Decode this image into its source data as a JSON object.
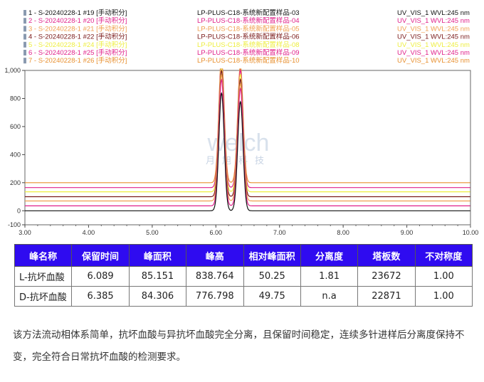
{
  "chart_data": {
    "type": "line",
    "legend": [
      {
        "run": "1 - S-20240228-1 #19 [手动积分]",
        "sample": "LP-PLUS-C18-系统新配置样品-03",
        "channel": "UV_VIS_1 WVL:245 nm",
        "color": "#111111"
      },
      {
        "run": "2 - S-20240228-1 #20 [手动积分]",
        "sample": "LP-PLUS-C18-系统新配置样品-04",
        "channel": "UV_VIS_1 WVL:245 nm",
        "color": "#e0208a"
      },
      {
        "run": "3 - S-20240228-1 #21 [手动积分]",
        "sample": "LP-PLUS-C18-系统新配置样品-05",
        "channel": "UV_VIS_1 WVL:245 nm",
        "color": "#f0a050"
      },
      {
        "run": "4 - S-20240228-1 #22 [手动积分]",
        "sample": "LP-PLUS-C18-系统新配置样品-06",
        "channel": "UV_VIS_1 WVL:245 nm",
        "color": "#7a1a1a"
      },
      {
        "run": "5 - S-20240228-1 #24 [手动积分]",
        "sample": "LP-PLUS-C18-系统新配置样品-08",
        "channel": "UV_VIS_1 WVL:245 nm",
        "color": "#eeee40"
      },
      {
        "run": "6 - S-20240228-1 #25 [手动积分]",
        "sample": "LP-PLUS-C18-系统新配置样品-09",
        "channel": "UV_VIS_1 WVL:245 nm",
        "color": "#e0208a"
      },
      {
        "run": "7 - S-20240228-1 #26 [手动积分]",
        "sample": "LP-PLUS-C18-系统新配置样品-10",
        "channel": "UV_VIS_1 WVL:245 nm",
        "color": "#e89030"
      }
    ],
    "baseline_offsets": [
      0,
      35,
      70,
      100,
      135,
      165,
      200
    ],
    "peaks": [
      {
        "rt": 6.089,
        "height": 838.764
      },
      {
        "rt": 6.385,
        "height": 776.798
      }
    ],
    "xlim": [
      3.0,
      10.0
    ],
    "ylim": [
      -100,
      1000
    ],
    "xticks": [
      "3.00",
      "4.00",
      "5.00",
      "6.00",
      "7.00",
      "8.00",
      "9.00",
      "10.00"
    ],
    "yticks": [
      "-100",
      "0",
      "200",
      "400",
      "600",
      "800",
      "1,000"
    ],
    "watermark": "welch 月旭科技"
  },
  "table": {
    "headers": [
      "峰名称",
      "保留时间",
      "峰面积",
      "峰高",
      "相对峰面积",
      "分离度",
      "塔板数",
      "不对称度"
    ],
    "rows": [
      [
        "L-抗坏血酸",
        "6.089",
        "85.151",
        "838.764",
        "50.25",
        "1.81",
        "23672",
        "1.00"
      ],
      [
        "D-抗坏血酸",
        "6.385",
        "84.306",
        "776.798",
        "49.75",
        "n.a",
        "22871",
        "1.00"
      ]
    ]
  },
  "paragraph": "该方法流动相体系简单，抗坏血酸与异抗坏血酸完全分离，且保留时间稳定，连续多针进样后分离度保持不变，完全符合日常抗坏血酸的检测要求。"
}
